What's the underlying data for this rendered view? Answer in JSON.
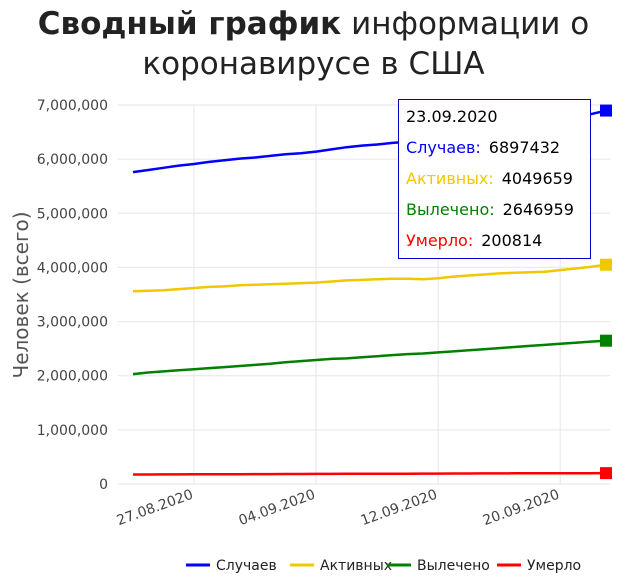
{
  "title_bold": "Сводный график",
  "title_rest": " информации о коронавирусе в США",
  "chart_data": {
    "type": "line",
    "title": "Сводный график информации о коронавирусе в США",
    "ylabel": "Человек (всего)",
    "xlabel": "",
    "ylim": [
      0,
      7000000
    ],
    "yticks": [
      0,
      1000000,
      2000000,
      3000000,
      4000000,
      5000000,
      6000000,
      7000000
    ],
    "ytick_labels": [
      "0",
      "1,000,000",
      "2,000,000",
      "3,000,000",
      "4,000,000",
      "5,000,000",
      "6,000,000",
      "7,000,000"
    ],
    "xtick_labels": [
      "27.08.2020",
      "04.09.2020",
      "12.09.2020",
      "20.09.2020"
    ],
    "x": [
      "23.08.2020",
      "24.08.2020",
      "25.08.2020",
      "26.08.2020",
      "27.08.2020",
      "28.08.2020",
      "29.08.2020",
      "30.08.2020",
      "31.08.2020",
      "01.09.2020",
      "02.09.2020",
      "03.09.2020",
      "04.09.2020",
      "05.09.2020",
      "06.09.2020",
      "07.09.2020",
      "08.09.2020",
      "09.09.2020",
      "10.09.2020",
      "11.09.2020",
      "12.09.2020",
      "13.09.2020",
      "14.09.2020",
      "15.09.2020",
      "16.09.2020",
      "17.09.2020",
      "18.09.2020",
      "19.09.2020",
      "20.09.2020",
      "21.09.2020",
      "22.09.2020",
      "23.09.2020"
    ],
    "series": [
      {
        "name": "Случаев",
        "color": "#0000ff",
        "values": [
          5760000,
          5800000,
          5840000,
          5880000,
          5910000,
          5950000,
          5980000,
          6010000,
          6030000,
          6060000,
          6090000,
          6110000,
          6140000,
          6180000,
          6220000,
          6250000,
          6270000,
          6300000,
          6320000,
          6330000,
          6350000,
          6400000,
          6440000,
          6480000,
          6530000,
          6570000,
          6620000,
          6660000,
          6710000,
          6760000,
          6830000,
          6897432
        ]
      },
      {
        "name": "Активных",
        "color": "#f0c800",
        "values": [
          3560000,
          3570000,
          3580000,
          3600000,
          3620000,
          3640000,
          3650000,
          3670000,
          3680000,
          3690000,
          3700000,
          3710000,
          3720000,
          3740000,
          3760000,
          3770000,
          3780000,
          3790000,
          3790000,
          3780000,
          3800000,
          3830000,
          3850000,
          3870000,
          3890000,
          3900000,
          3910000,
          3920000,
          3950000,
          3980000,
          4010000,
          4049659
        ]
      },
      {
        "name": "Вылечено",
        "color": "#008000",
        "values": [
          2030000,
          2060000,
          2080000,
          2100000,
          2120000,
          2140000,
          2160000,
          2180000,
          2200000,
          2220000,
          2250000,
          2270000,
          2290000,
          2310000,
          2320000,
          2340000,
          2360000,
          2380000,
          2400000,
          2410000,
          2430000,
          2450000,
          2470000,
          2490000,
          2510000,
          2530000,
          2550000,
          2570000,
          2590000,
          2610000,
          2630000,
          2646959
        ]
      },
      {
        "name": "Умерло",
        "color": "#ff0000",
        "values": [
          175000,
          176000,
          177000,
          178000,
          179000,
          180000,
          181000,
          181500,
          182000,
          183000,
          184000,
          185000,
          186000,
          187000,
          187500,
          188000,
          189000,
          190000,
          191000,
          192000,
          193000,
          194000,
          194500,
          195000,
          196000,
          197000,
          197500,
          198000,
          198500,
          199000,
          200000,
          200814
        ]
      }
    ],
    "legend_position": "bottom-right",
    "grid": true
  },
  "tooltip": {
    "date": "23.09.2020",
    "rows": [
      {
        "label": "Случаев:",
        "value": "6897432",
        "color": "#0000ff"
      },
      {
        "label": "Активных:",
        "value": "4049659",
        "color": "#f0c800"
      },
      {
        "label": "Вылечено:",
        "value": "2646959",
        "color": "#008000"
      },
      {
        "label": "Умерло:",
        "value": "200814",
        "color": "#ff0000"
      }
    ]
  }
}
